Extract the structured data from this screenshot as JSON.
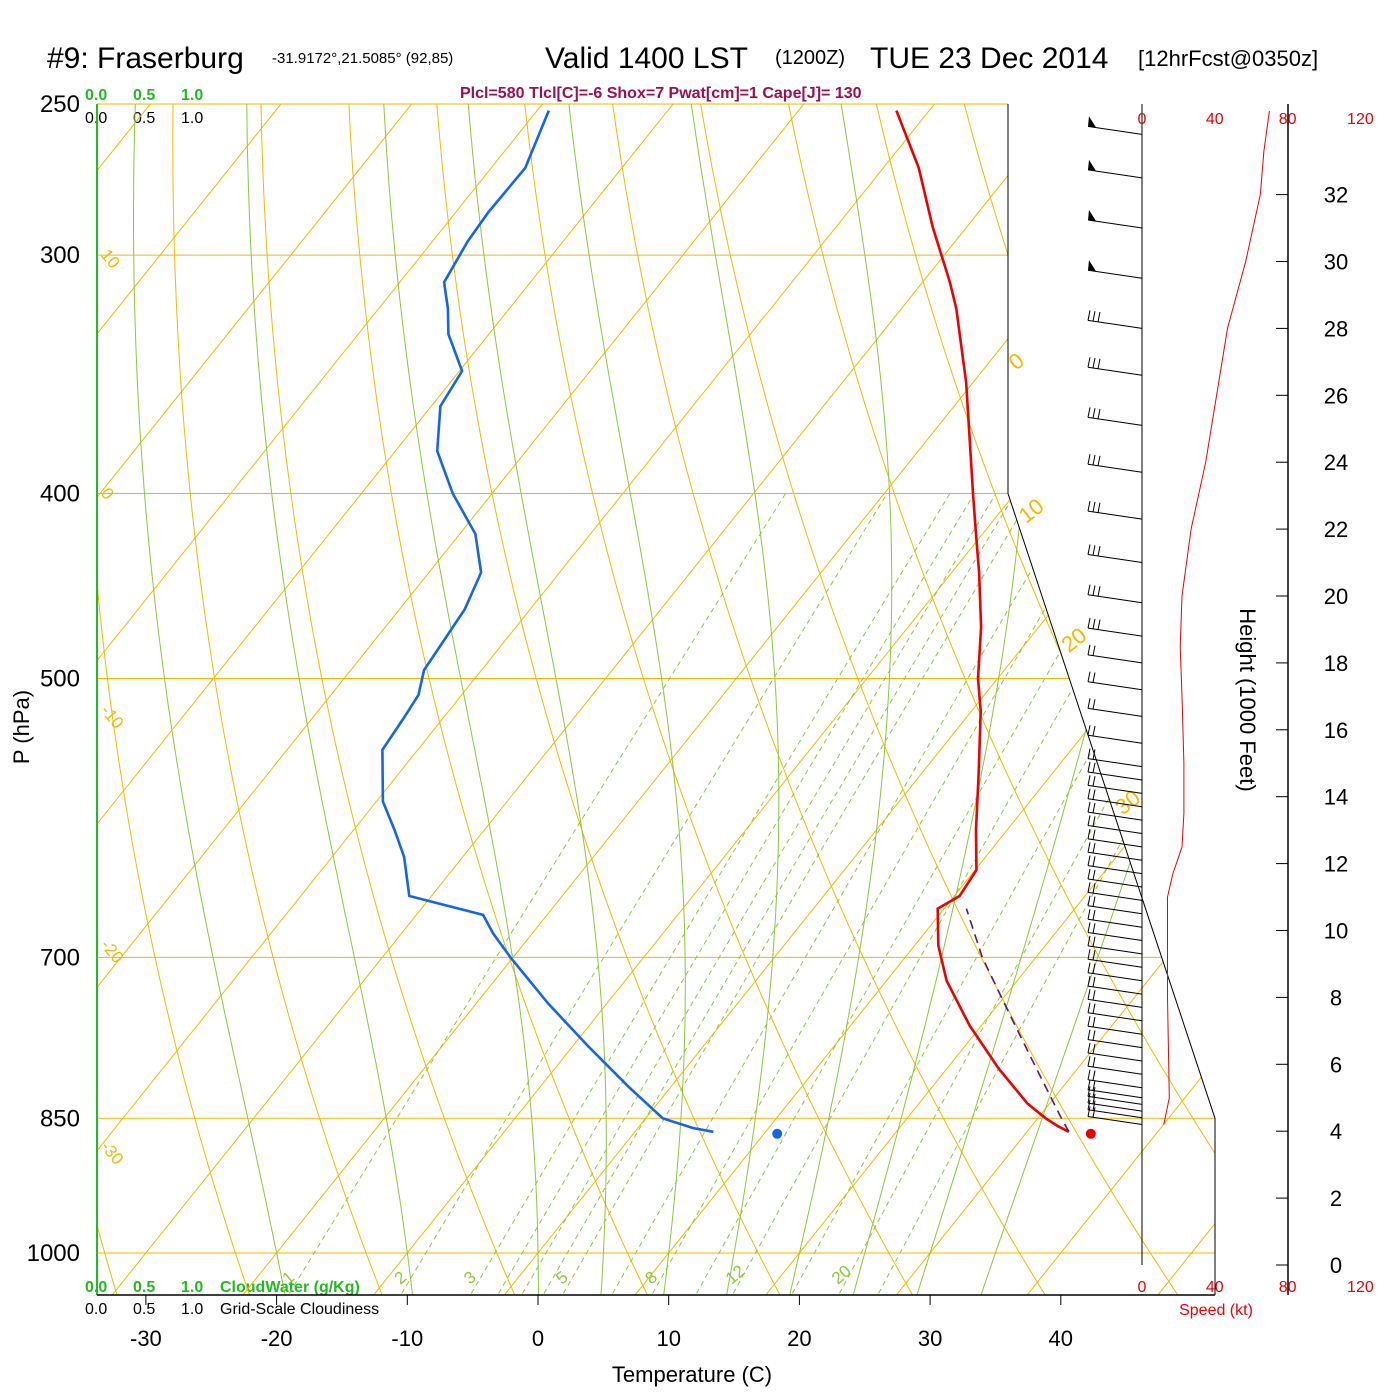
{
  "header": {
    "station": "#9: Fraserburg",
    "coords": "-31.9172°,21.5085° (92,85)",
    "valid": "Valid 1400 LST",
    "zulu": "(1200Z)",
    "date": "TUE 23 Dec 2014",
    "forecast": "[12hrFcst@0350z]",
    "indices": "Plcl=580 Tlcl[C]=-6 Shox=7 Pwat[cm]=1 Cape[J]= 130"
  },
  "cloud_scale": {
    "water_ticks": [
      "0.0",
      "0.5",
      "1.0"
    ],
    "cover_ticks": [
      "0.0",
      "0.5",
      "1.0"
    ],
    "water_label": "CloudWater (g/Kg)",
    "cover_label": "Grid-Scale Cloudiness"
  },
  "speed_axis": {
    "ticks": [
      "0",
      "40",
      "80",
      "120"
    ],
    "label": "Speed (kt)"
  },
  "colors": {
    "isotherm": "#f5b800",
    "dry_adiabat": "#f5b800",
    "moist_adiabat": "#8cc83c",
    "mixing_ratio": "#8cc83c",
    "temperature": "#ee0000",
    "dewpoint": "#1565e8",
    "parcel": "#5a1a6a",
    "indices": "#9b1050",
    "cloud": "#22bb22",
    "speed": "#ee0000"
  },
  "chart_data": {
    "type": "line",
    "xlabel": "Temperature (C)",
    "ylabel": "P (hPa)",
    "y2label": "Height (1000 Feet)",
    "xticks": [
      -30,
      -20,
      -10,
      0,
      10,
      20,
      30,
      40
    ],
    "pressure_ticks": [
      250,
      300,
      400,
      500,
      700,
      850,
      1000
    ],
    "height_ticks": [
      0,
      2,
      4,
      6,
      8,
      10,
      12,
      14,
      16,
      18,
      20,
      22,
      24,
      26,
      28,
      30,
      32
    ],
    "ylim_hpa": [
      1050,
      250
    ],
    "isotherm_labels": [
      {
        "value": "0",
        "p": 345
      },
      {
        "value": "10",
        "p": 415
      },
      {
        "value": "20",
        "p": 485
      },
      {
        "value": "30",
        "p": 590
      }
    ],
    "dry_adiabat_labels": [
      {
        "value": "10",
        "p": 300
      },
      {
        "value": "0",
        "p": 400
      },
      {
        "value": "-10",
        "p": 520
      },
      {
        "value": "-20",
        "p": 690
      },
      {
        "value": "-30",
        "p": 880
      }
    ],
    "mixing_ratio_labels": [
      "1",
      "2",
      "3",
      "5",
      "8",
      "12",
      "20"
    ],
    "series": [
      {
        "name": "Temperature",
        "points": [
          [
            864,
            33.2
          ],
          [
            858,
            32.0
          ],
          [
            850,
            30.6
          ],
          [
            835,
            28.3
          ],
          [
            800,
            23.9
          ],
          [
            760,
            19.1
          ],
          [
            720,
            14.6
          ],
          [
            690,
            11.8
          ],
          [
            660,
            9.5
          ],
          [
            650,
            10.4
          ],
          [
            630,
            10.1
          ],
          [
            600,
            7.6
          ],
          [
            560,
            4.3
          ],
          [
            520,
            0.7
          ],
          [
            500,
            -1.5
          ],
          [
            470,
            -4.4
          ],
          [
            440,
            -7.9
          ],
          [
            420,
            -10.5
          ],
          [
            400,
            -13.2
          ],
          [
            380,
            -16.0
          ],
          [
            350,
            -20.5
          ],
          [
            320,
            -25.8
          ],
          [
            310,
            -27.9
          ],
          [
            290,
            -32.6
          ],
          [
            270,
            -37.3
          ],
          [
            252,
            -42.5
          ]
        ]
      },
      {
        "name": "Dewpoint",
        "points": [
          [
            864,
            6.0
          ],
          [
            860,
            4.2
          ],
          [
            850,
            1.3
          ],
          [
            820,
            -3.0
          ],
          [
            780,
            -8.7
          ],
          [
            740,
            -14.5
          ],
          [
            700,
            -20.2
          ],
          [
            680,
            -23.0
          ],
          [
            665,
            -24.9
          ],
          [
            650,
            -31.7
          ],
          [
            620,
            -34.5
          ],
          [
            600,
            -36.9
          ],
          [
            580,
            -39.5
          ],
          [
            545,
            -42.7
          ],
          [
            525,
            -43.0
          ],
          [
            510,
            -43.3
          ],
          [
            495,
            -44.4
          ],
          [
            460,
            -45.0
          ],
          [
            440,
            -46.0
          ],
          [
            420,
            -48.8
          ],
          [
            400,
            -53.0
          ],
          [
            380,
            -56.8
          ],
          [
            360,
            -59.3
          ],
          [
            345,
            -59.8
          ],
          [
            330,
            -63.1
          ],
          [
            320,
            -64.7
          ],
          [
            310,
            -66.6
          ],
          [
            295,
            -67.3
          ],
          [
            285,
            -67.5
          ],
          [
            270,
            -67.4
          ],
          [
            252,
            -69.1
          ]
        ]
      },
      {
        "name": "Parcel",
        "points": [
          [
            864,
            33.2
          ],
          [
            850,
            31.8
          ],
          [
            800,
            26.8
          ],
          [
            750,
            21.5
          ],
          [
            700,
            15.9
          ],
          [
            660,
            11.7
          ]
        ]
      }
    ],
    "surface_markers": [
      {
        "name": "temperature",
        "p": 866,
        "t": 35
      },
      {
        "name": "dewpoint",
        "p": 866,
        "t": 11
      }
    ],
    "wind_barbs_kft": [
      4.2,
      4.4,
      4.6,
      4.8,
      5.0,
      5.3,
      5.7,
      6.1,
      6.5,
      6.9,
      7.3,
      7.7,
      8.1,
      8.5,
      8.9,
      9.3,
      9.7,
      10.1,
      10.5,
      10.9,
      11.3,
      11.7,
      12.1,
      12.5,
      12.9,
      13.3,
      13.7,
      14.1,
      14.5,
      14.9,
      15.6,
      16.4,
      17.2,
      18.0,
      18.8,
      19.8,
      21.0,
      22.3,
      23.7,
      25.1,
      26.6,
      28.0,
      29.5,
      31.0,
      32.5,
      33.8
    ],
    "wind_speed_profile_kt": [
      [
        4.2,
        12
      ],
      [
        5.0,
        15
      ],
      [
        8.0,
        14
      ],
      [
        11.0,
        14
      ],
      [
        11.7,
        17
      ],
      [
        12.5,
        22
      ],
      [
        13.5,
        23
      ],
      [
        15.0,
        23
      ],
      [
        17.0,
        22
      ],
      [
        18.5,
        21
      ],
      [
        20.0,
        22
      ],
      [
        22.0,
        27
      ],
      [
        24.0,
        35
      ],
      [
        26.0,
        41
      ],
      [
        28.0,
        47
      ],
      [
        30.0,
        57
      ],
      [
        32.0,
        65
      ],
      [
        33.3,
        67
      ],
      [
        34.5,
        70
      ]
    ]
  }
}
